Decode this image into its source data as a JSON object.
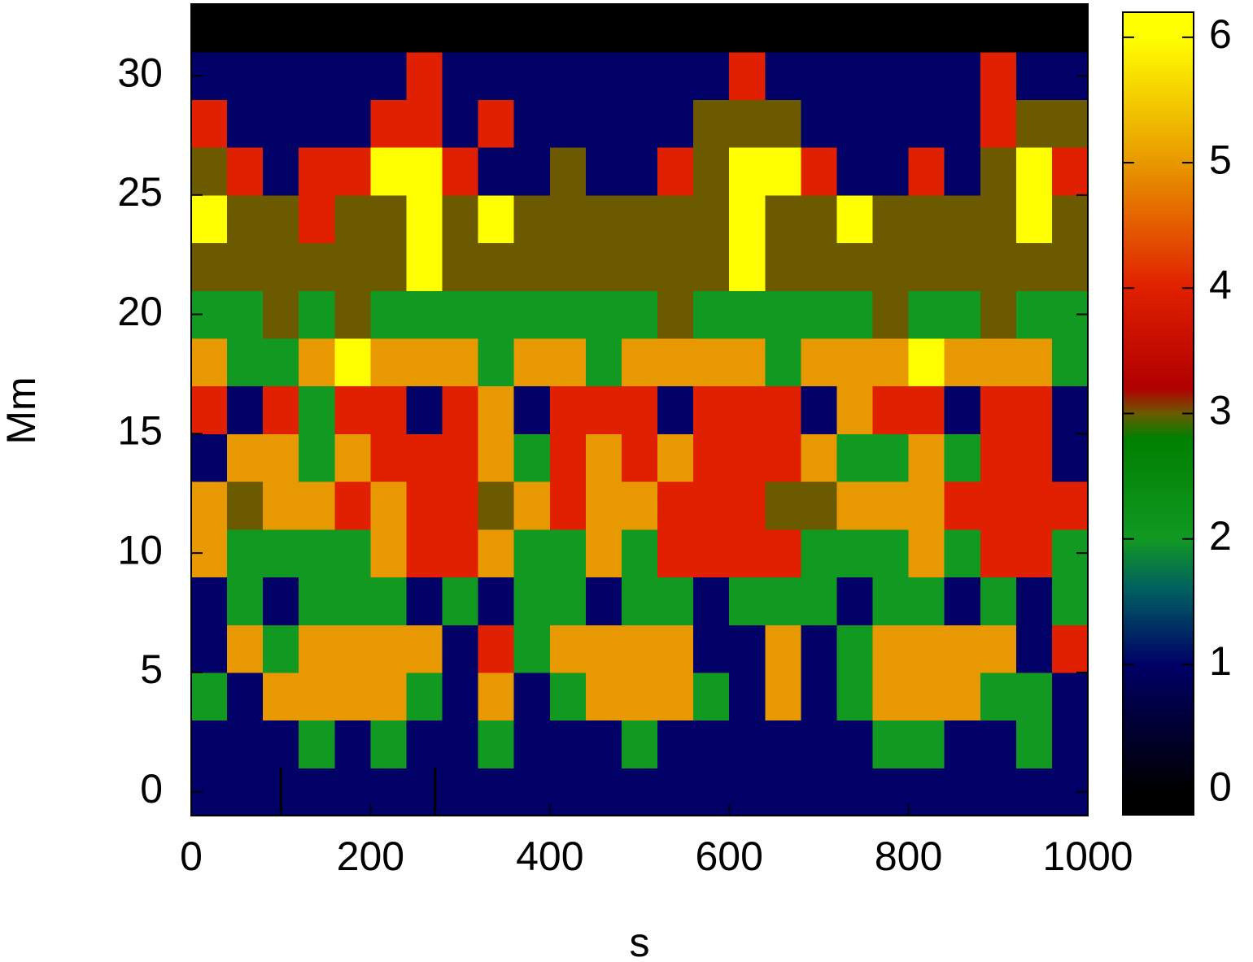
{
  "chart_data": {
    "type": "heatmap",
    "xlabel": "s",
    "ylabel": "Mm",
    "xlim": [
      0,
      1000
    ],
    "ylim": [
      -1,
      33
    ],
    "xticks": [
      0,
      200,
      400,
      600,
      800,
      1000
    ],
    "yticks": [
      0,
      5,
      10,
      15,
      20,
      25,
      30
    ],
    "xbins": [
      0,
      40,
      80,
      120,
      160,
      200,
      240,
      280,
      320,
      360,
      400,
      440,
      480,
      520,
      560,
      600,
      640,
      680,
      720,
      760,
      800,
      840,
      880,
      920,
      960,
      1000
    ],
    "ybins": [
      -1,
      1,
      3,
      5,
      7,
      9,
      11,
      13,
      15,
      17,
      19,
      21,
      23,
      25,
      27,
      29,
      31,
      33
    ],
    "z": [
      [
        1,
        1,
        1,
        1,
        1,
        1,
        1,
        1,
        1,
        1,
        1,
        1,
        1,
        1,
        1,
        1,
        1,
        1,
        1,
        1,
        1,
        1,
        1,
        1,
        1
      ],
      [
        1,
        1,
        1,
        2,
        1,
        2,
        1,
        1,
        2,
        1,
        1,
        1,
        2,
        1,
        1,
        1,
        1,
        1,
        1,
        2,
        2,
        1,
        1,
        2,
        1
      ],
      [
        2,
        1,
        5,
        5,
        5,
        5,
        2,
        1,
        5,
        1,
        2,
        5,
        5,
        5,
        2,
        1,
        5,
        1,
        2,
        5,
        5,
        5,
        2,
        2,
        1
      ],
      [
        1,
        5,
        2,
        5,
        5,
        5,
        5,
        1,
        4,
        2,
        5,
        5,
        5,
        5,
        1,
        1,
        5,
        1,
        2,
        5,
        5,
        5,
        5,
        1,
        4
      ],
      [
        1,
        2,
        1,
        2,
        2,
        2,
        1,
        2,
        1,
        2,
        2,
        1,
        2,
        2,
        1,
        2,
        2,
        2,
        1,
        2,
        2,
        1,
        2,
        1,
        2
      ],
      [
        5,
        2,
        2,
        2,
        2,
        5,
        4,
        4,
        5,
        2,
        2,
        5,
        2,
        4,
        4,
        4,
        4,
        2,
        2,
        2,
        5,
        2,
        4,
        4,
        2
      ],
      [
        5,
        3,
        5,
        5,
        4,
        5,
        4,
        4,
        3,
        5,
        4,
        5,
        5,
        4,
        4,
        4,
        3,
        3,
        5,
        5,
        5,
        4,
        4,
        4,
        4
      ],
      [
        1,
        5,
        5,
        2,
        5,
        4,
        4,
        4,
        5,
        2,
        4,
        5,
        4,
        5,
        4,
        4,
        4,
        5,
        2,
        2,
        5,
        2,
        4,
        4,
        1
      ],
      [
        4,
        1,
        4,
        2,
        4,
        4,
        1,
        4,
        5,
        1,
        4,
        4,
        4,
        1,
        4,
        4,
        4,
        1,
        5,
        4,
        4,
        1,
        4,
        4,
        1
      ],
      [
        5,
        2,
        2,
        5,
        6,
        5,
        5,
        5,
        2,
        5,
        5,
        2,
        5,
        5,
        5,
        5,
        2,
        5,
        5,
        5,
        6,
        5,
        5,
        5,
        2
      ],
      [
        2,
        2,
        3,
        2,
        3,
        2,
        2,
        2,
        2,
        2,
        2,
        2,
        2,
        3,
        2,
        2,
        2,
        2,
        2,
        3,
        2,
        2,
        3,
        2,
        2
      ],
      [
        3,
        3,
        3,
        3,
        3,
        3,
        6,
        3,
        3,
        3,
        3,
        3,
        3,
        3,
        3,
        6,
        3,
        3,
        3,
        3,
        3,
        3,
        3,
        3,
        3
      ],
      [
        6,
        3,
        3,
        4,
        3,
        3,
        6,
        3,
        6,
        3,
        3,
        3,
        3,
        3,
        3,
        6,
        3,
        3,
        6,
        3,
        3,
        3,
        3,
        6,
        3
      ],
      [
        3,
        4,
        1,
        4,
        4,
        6,
        6,
        4,
        1,
        1,
        3,
        1,
        1,
        4,
        3,
        6,
        6,
        4,
        1,
        1,
        4,
        1,
        3,
        6,
        4
      ],
      [
        4,
        1,
        1,
        1,
        1,
        4,
        4,
        1,
        4,
        1,
        1,
        1,
        1,
        1,
        3,
        3,
        3,
        1,
        1,
        1,
        1,
        1,
        4,
        3,
        3
      ],
      [
        1,
        1,
        1,
        1,
        1,
        1,
        4,
        1,
        1,
        1,
        1,
        1,
        1,
        1,
        1,
        4,
        1,
        1,
        1,
        1,
        1,
        1,
        4,
        1,
        1
      ],
      [
        0,
        0,
        0,
        0,
        0,
        0,
        0,
        0,
        0,
        0,
        0,
        0,
        0,
        0,
        0,
        0,
        0,
        0,
        0,
        0,
        0,
        0,
        0,
        0,
        0
      ]
    ],
    "vlines": [
      100,
      272
    ],
    "colorscale": [
      [
        0,
        "#000000"
      ],
      [
        1,
        "#000066"
      ],
      [
        1.6,
        "#006060"
      ],
      [
        2,
        "#119922"
      ],
      [
        2.8,
        "#008000"
      ],
      [
        3,
        "#6b5a00"
      ],
      [
        3.2,
        "#b00000"
      ],
      [
        4,
        "#e02000"
      ],
      [
        5,
        "#e89800"
      ],
      [
        6,
        "#ffff00"
      ]
    ],
    "clim": [
      -0.2,
      6.2
    ],
    "cticks": [
      0,
      1,
      2,
      3,
      4,
      5,
      6
    ]
  }
}
